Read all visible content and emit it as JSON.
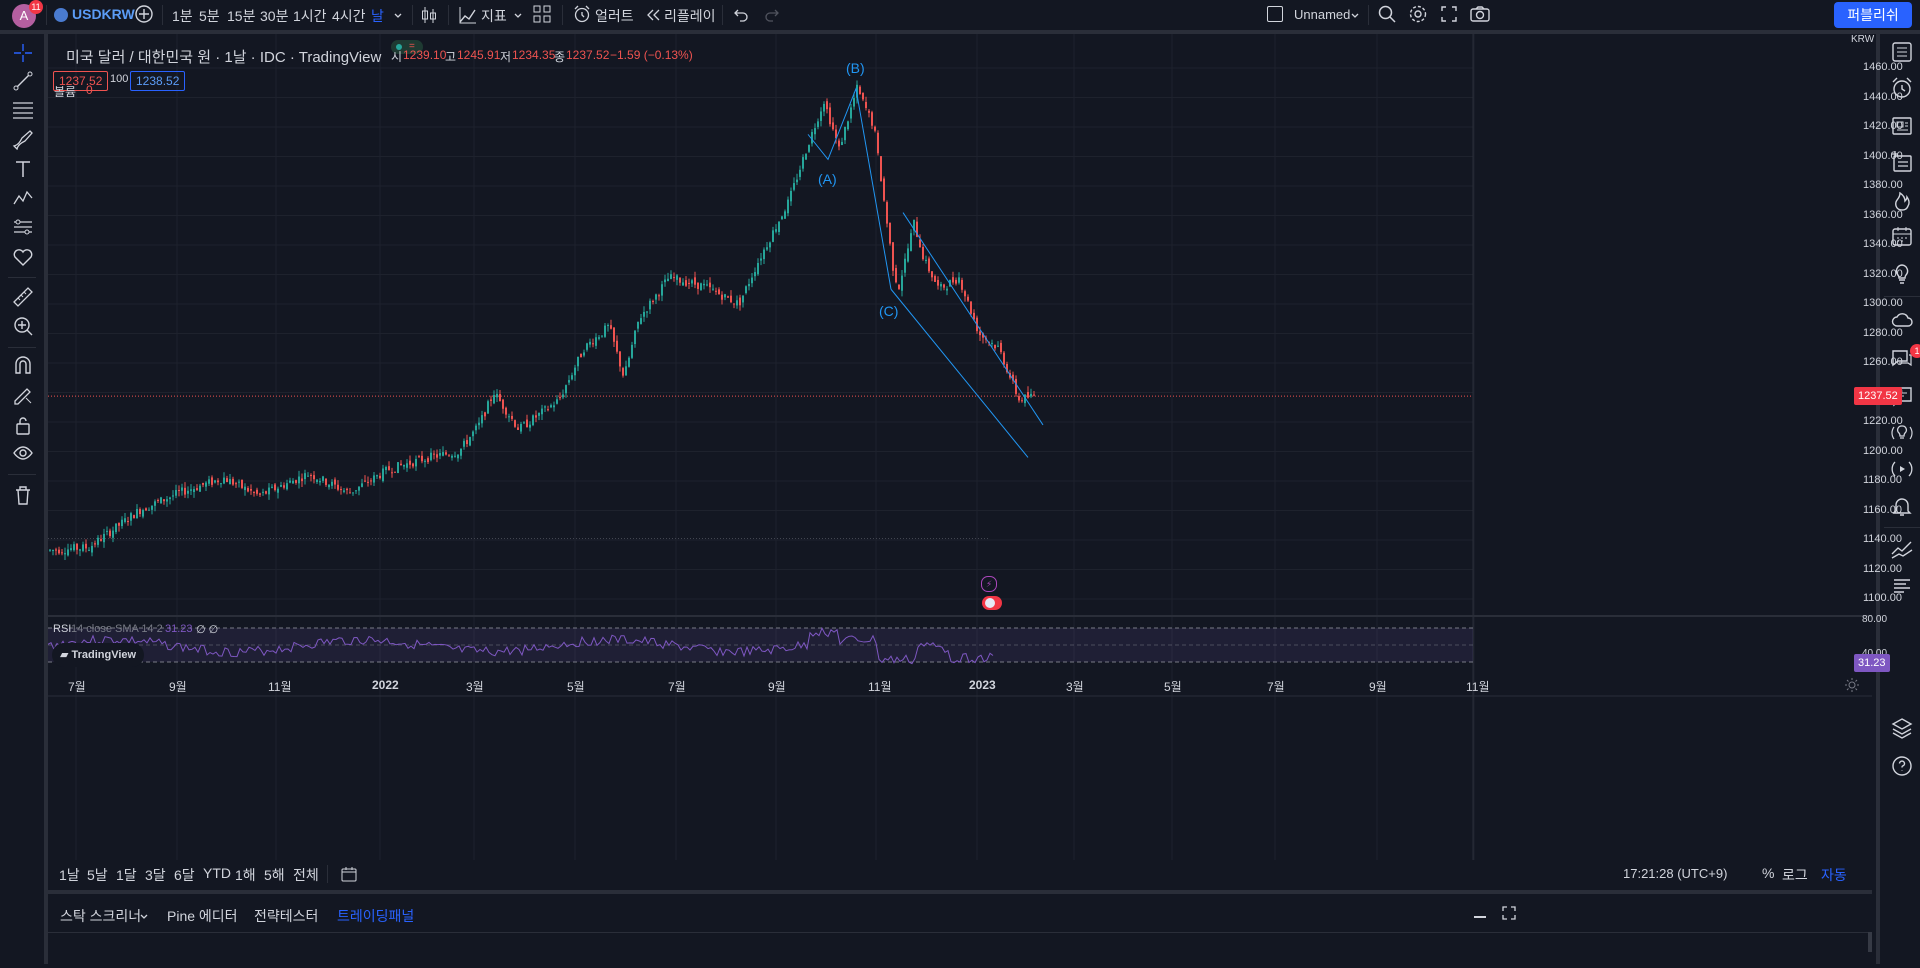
{
  "topbar": {
    "avatar_letter": "A",
    "notification_count": "11",
    "symbol": "USDKRW",
    "intervals": [
      "1분",
      "5분",
      "15분",
      "30분",
      "1시간",
      "4시간",
      "날"
    ],
    "indicators_label": "지표",
    "alert_label": "얼러트",
    "replay_label": "리플레이",
    "layout_name": "Unnamed",
    "publish_label": "퍼블리쉬"
  },
  "legend": {
    "title": "미국 달러 / 대한민국 원 · 1날 · IDC · TradingView",
    "open_label": "시",
    "open": "1239.10",
    "high_label": "고",
    "high": "1245.91",
    "low_label": "저",
    "low": "1234.35",
    "close_label": "종",
    "close": "1237.52",
    "change": "−1.59 (−0.13%)",
    "bid": "1237.52",
    "spread": "100",
    "ask": "1238.52",
    "volume_label": "볼륨",
    "volume": "0"
  },
  "annotations": {
    "wave_b": "(B)",
    "wave_a": "(A)",
    "wave_c": "(C)"
  },
  "rsi": {
    "label": "RSI",
    "params": "14 close SMA 14 2",
    "value": "31.23",
    "extra": "∅ ∅",
    "level_high": "80.00",
    "level_low": "40.00",
    "watermark": "TradingView"
  },
  "price_axis": {
    "currency": "KRW",
    "ticks": [
      "1460.00",
      "1440.00",
      "1420.00",
      "1400.00",
      "1380.00",
      "1360.00",
      "1340.00",
      "1320.00",
      "1300.00",
      "1280.00",
      "1260.00",
      "1240.00",
      "1220.00",
      "1200.00",
      "1180.00",
      "1160.00",
      "1140.00",
      "1120.00",
      "1100.00"
    ],
    "last_price": "1237.52"
  },
  "time_axis": {
    "ticks": [
      "7월",
      "9월",
      "11월",
      "2022",
      "3월",
      "5월",
      "7월",
      "9월",
      "11월",
      "2023",
      "3월",
      "5월",
      "7월",
      "9월",
      "11월"
    ]
  },
  "range_bar": {
    "ranges": [
      "1날",
      "5날",
      "1달",
      "3달",
      "6달",
      "YTD",
      "1해",
      "5해",
      "전체"
    ],
    "clock": "17:21:28 (UTC+9)",
    "percent": "%",
    "log": "로그",
    "auto": "자동"
  },
  "bottom_panel": {
    "tabs": [
      "스탁 스크리너",
      "Pine 에디터",
      "전략테스터",
      "트레이딩패널"
    ],
    "active_tab": "트레이딩패널"
  },
  "colors": {
    "up": "#26a69a",
    "down": "#ef5350",
    "accent": "#2962ff",
    "wave": "#2196f3",
    "rsi": "#7e57c2"
  },
  "chart_data": {
    "type": "candlestick",
    "symbol": "USDKRW",
    "interval": "1D",
    "ylim": [
      1090,
      1470
    ],
    "key_points": [
      {
        "label": "(A)",
        "value": 1398
      },
      {
        "label": "(B)",
        "value": 1446
      },
      {
        "label": "(C)",
        "value": 1310
      }
    ],
    "last_close": 1237.52,
    "rsi_value": 31.23
  }
}
